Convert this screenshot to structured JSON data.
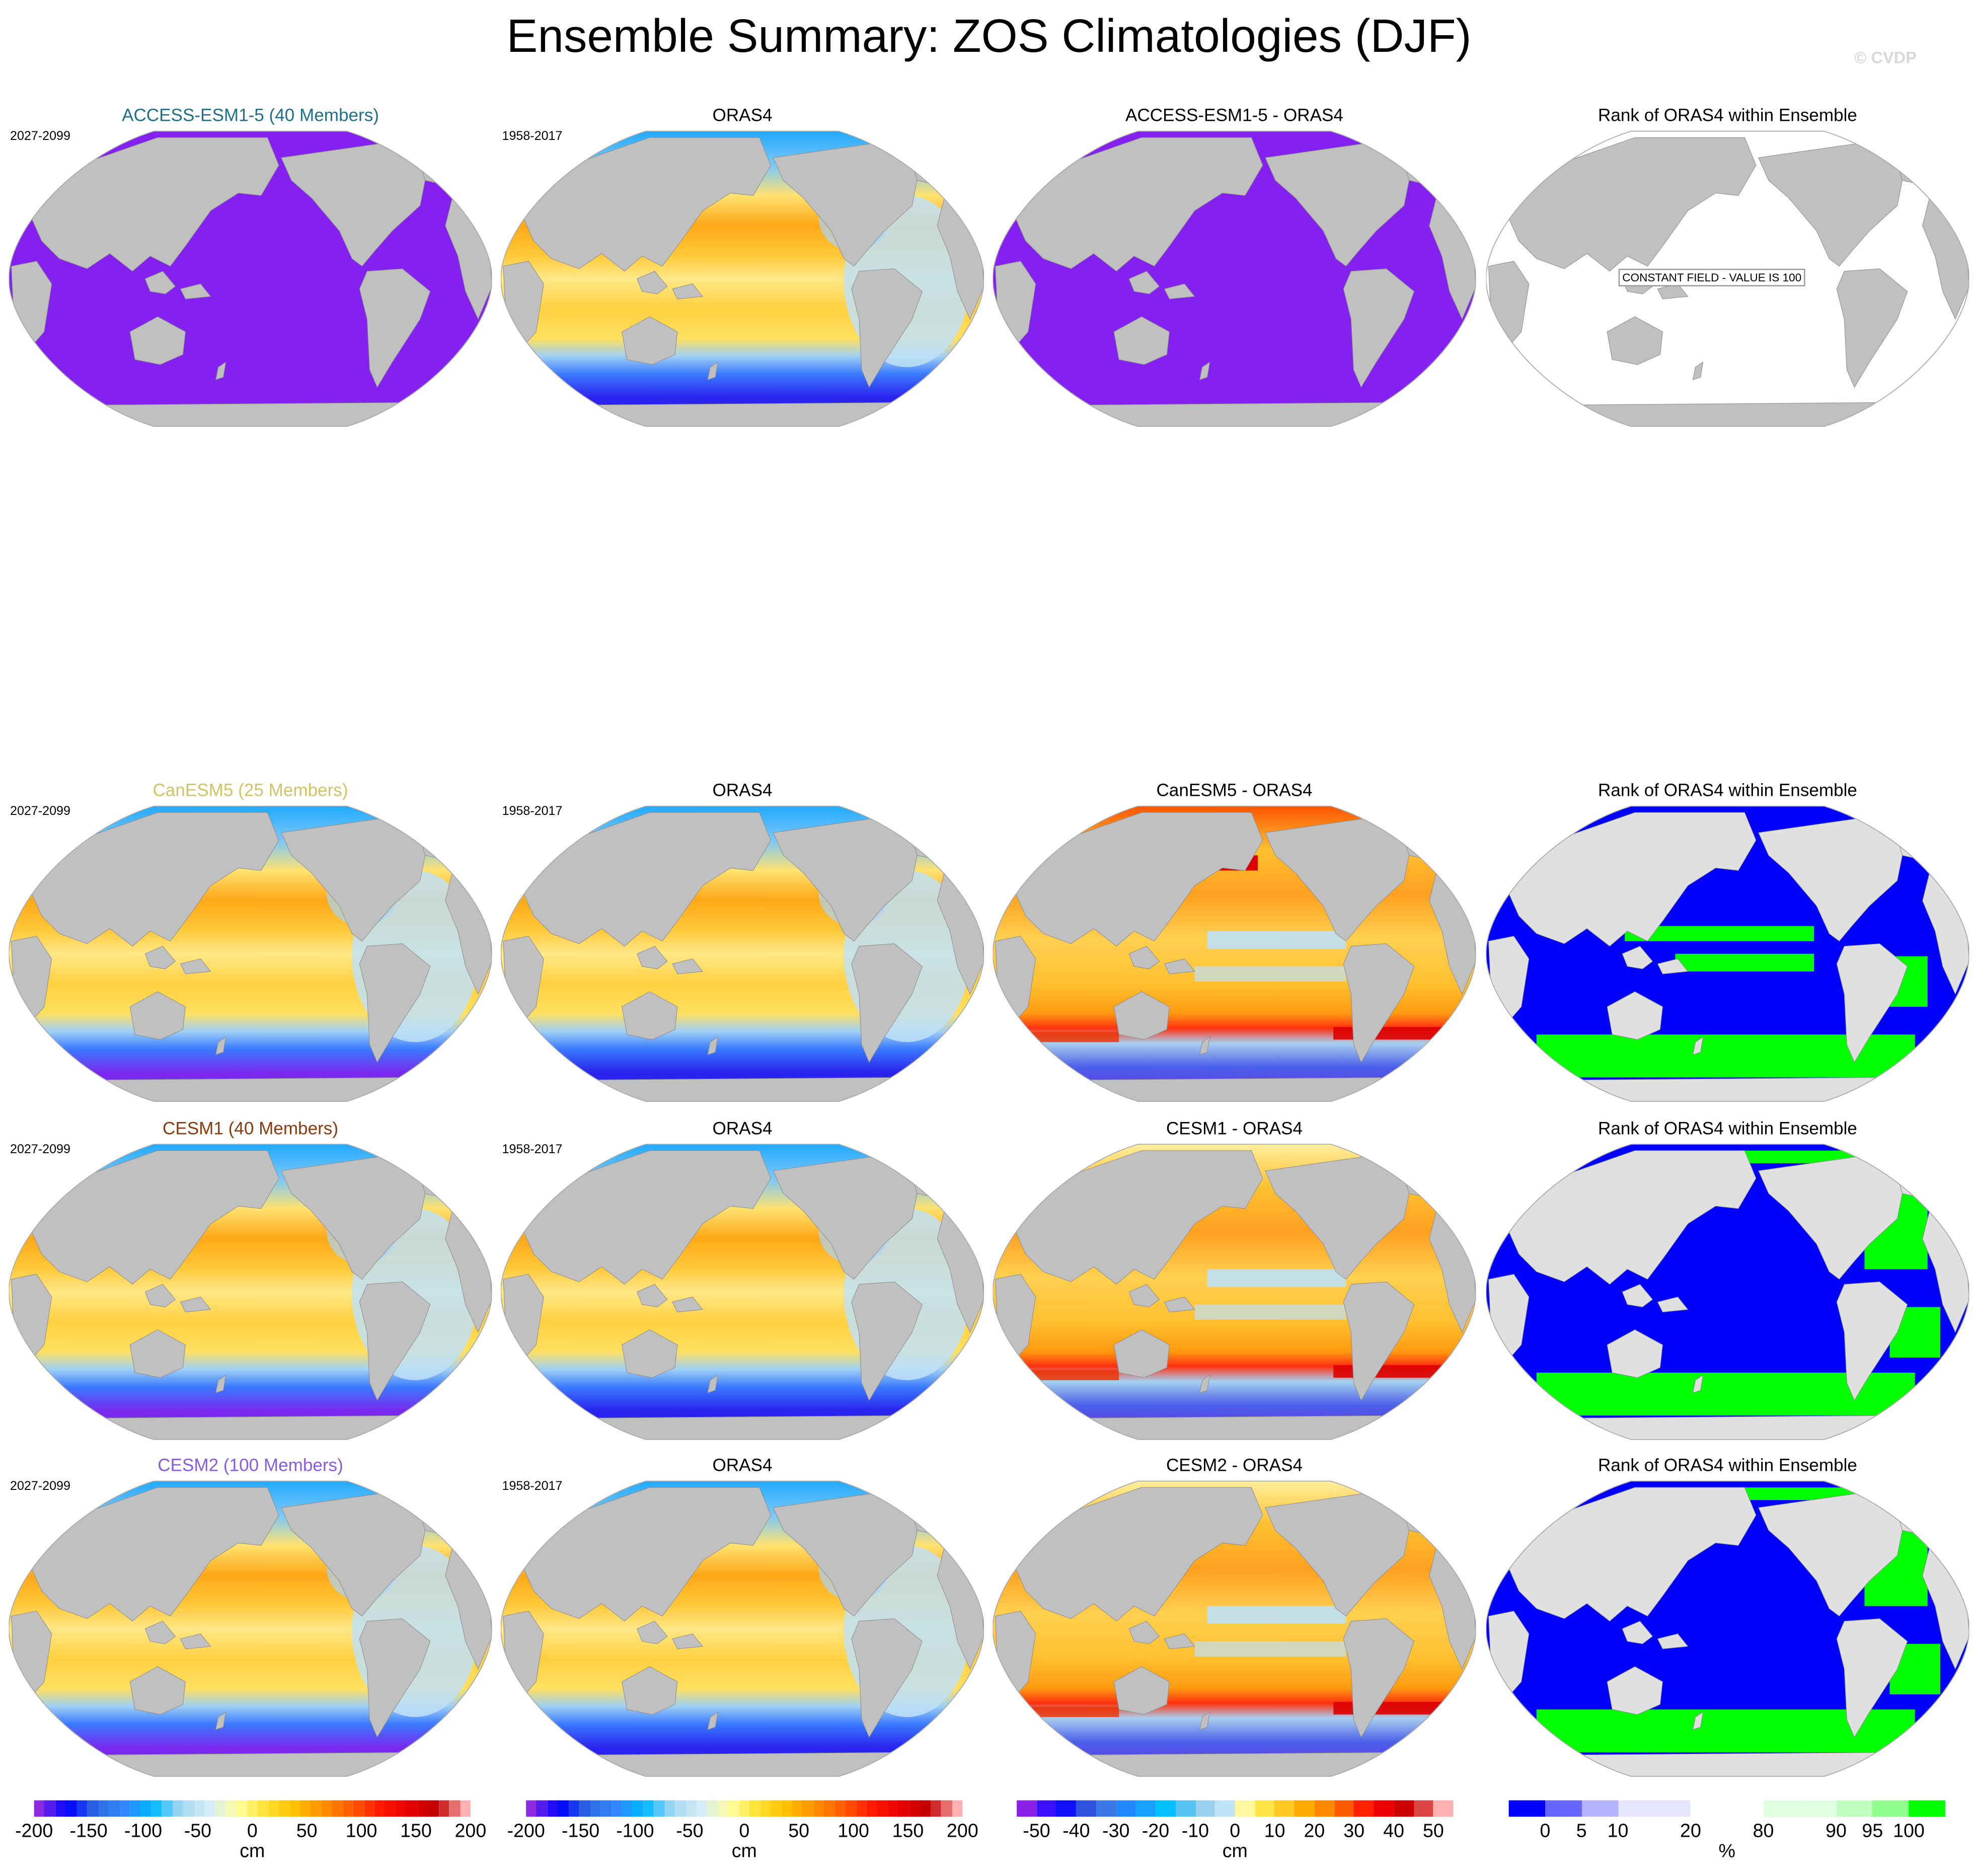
{
  "title": "Ensemble Summary: ZOS Climatologies (DJF)",
  "watermark": "© CVDP",
  "constant_field_label": "CONSTANT FIELD - VALUE IS 100",
  "rows": [
    {
      "panels": [
        {
          "title": "ACCESS-ESM1-5 (40 Members)",
          "title_color": "#1f6f8b",
          "years": "2027-2099",
          "fill": "purple"
        },
        {
          "title": "ORAS4",
          "title_color": "#000000",
          "years": "1958-2017",
          "fill": "ssh-obs"
        },
        {
          "title": "ACCESS-ESM1-5 - ORAS4",
          "title_color": "#000000",
          "fill": "purple"
        },
        {
          "title": "Rank of ORAS4 within Ensemble",
          "title_color": "#000000",
          "fill": "constant"
        }
      ]
    },
    {
      "panels": [
        {
          "title": "CanESM5 (25 Members)",
          "title_color": "#d4c264",
          "years": "2027-2099",
          "fill": "ssh-model"
        },
        {
          "title": "ORAS4",
          "title_color": "#000000",
          "years": "1958-2017",
          "fill": "ssh-obs"
        },
        {
          "title": "CanESM5 - ORAS4",
          "title_color": "#000000",
          "fill": "diff-strong"
        },
        {
          "title": "Rank of ORAS4 within Ensemble",
          "title_color": "#000000",
          "fill": "rank-a"
        }
      ]
    },
    {
      "panels": [
        {
          "title": "CESM1 (40 Members)",
          "title_color": "#8b3a0e",
          "years": "2027-2099",
          "fill": "ssh-model"
        },
        {
          "title": "ORAS4",
          "title_color": "#000000",
          "years": "1958-2017",
          "fill": "ssh-obs"
        },
        {
          "title": "CESM1 - ORAS4",
          "title_color": "#000000",
          "fill": "diff"
        },
        {
          "title": "Rank of ORAS4 within Ensemble",
          "title_color": "#000000",
          "fill": "rank-b"
        }
      ]
    },
    {
      "panels": [
        {
          "title": "CESM2 (100 Members)",
          "title_color": "#8a5ae0",
          "years": "2027-2099",
          "fill": "ssh-model"
        },
        {
          "title": "ORAS4",
          "title_color": "#000000",
          "years": "1958-2017",
          "fill": "ssh-obs"
        },
        {
          "title": "CESM2 - ORAS4",
          "title_color": "#000000",
          "fill": "diff"
        },
        {
          "title": "Rank of ORAS4 within Ensemble",
          "title_color": "#000000",
          "fill": "rank-b"
        }
      ]
    }
  ],
  "chart_data": [
    {
      "type": "heatmap",
      "name": "colorbar-climatology",
      "unit": "cm",
      "range": [
        -200,
        200
      ],
      "labels": [
        "-200",
        "-150",
        "-100",
        "-50",
        "0",
        "50",
        "100",
        "150",
        "200"
      ],
      "stops": [
        "#8a2be2",
        "#0000ff",
        "#2d6be0",
        "#3086ff",
        "#00b8ff",
        "#a8d8f0",
        "#d4ecf7",
        "#ffffa0",
        "#ffe030",
        "#ffc000",
        "#ff9000",
        "#ff5a00",
        "#ff1a00",
        "#e80000",
        "#c00000",
        "#ffb0b0"
      ]
    },
    {
      "type": "heatmap",
      "name": "colorbar-climatology-obs",
      "unit": "cm",
      "range": [
        -200,
        200
      ],
      "labels": [
        "-200",
        "-150",
        "-100",
        "-50",
        "0",
        "50",
        "100",
        "150",
        "200"
      ],
      "stops": [
        "#8a2be2",
        "#0000ff",
        "#2d6be0",
        "#3086ff",
        "#00b8ff",
        "#a8d8f0",
        "#d4ecf7",
        "#ffffa0",
        "#ffe030",
        "#ffc000",
        "#ff9000",
        "#ff5a00",
        "#ff1a00",
        "#e80000",
        "#c00000",
        "#ffb0b0"
      ]
    },
    {
      "type": "heatmap",
      "name": "colorbar-difference",
      "unit": "cm",
      "labels": [
        "-50",
        "-40",
        "-30",
        "-20",
        "-10",
        "0",
        "10",
        "20",
        "30",
        "40",
        "50"
      ],
      "label_boundaries": [
        1,
        3,
        5,
        7,
        9,
        11,
        13,
        15,
        17,
        19,
        21
      ],
      "colors": [
        "#8a20e8",
        "#3a10f8",
        "#1010f8",
        "#3050e0",
        "#3a78e8",
        "#2288ff",
        "#18a0ff",
        "#00c0ff",
        "#58c4f4",
        "#98d0ee",
        "#bee4f6",
        "#fff8a0",
        "#ffe448",
        "#ffc822",
        "#ffaa00",
        "#ff8800",
        "#ff5a00",
        "#ff2000",
        "#ee0000",
        "#cc0000",
        "#dd4444",
        "#ffb0b0"
      ]
    },
    {
      "type": "heatmap",
      "name": "colorbar-rank",
      "unit": "%",
      "labels": [
        "0",
        "5",
        "10",
        "20",
        "80",
        "90",
        "95",
        "100"
      ],
      "label_boundaries": [
        1,
        2,
        3,
        5,
        7,
        9,
        10,
        11
      ],
      "colors": [
        "#0000ff",
        "#6666ff",
        "#b3b3ff",
        "#e5e5ff",
        "#e5e5ff",
        "#ffffff",
        "#ffffff",
        "#e0ffe0",
        "#e0ffe0",
        "#c0ffc0",
        "#90ff90",
        "#00ff00"
      ]
    }
  ]
}
